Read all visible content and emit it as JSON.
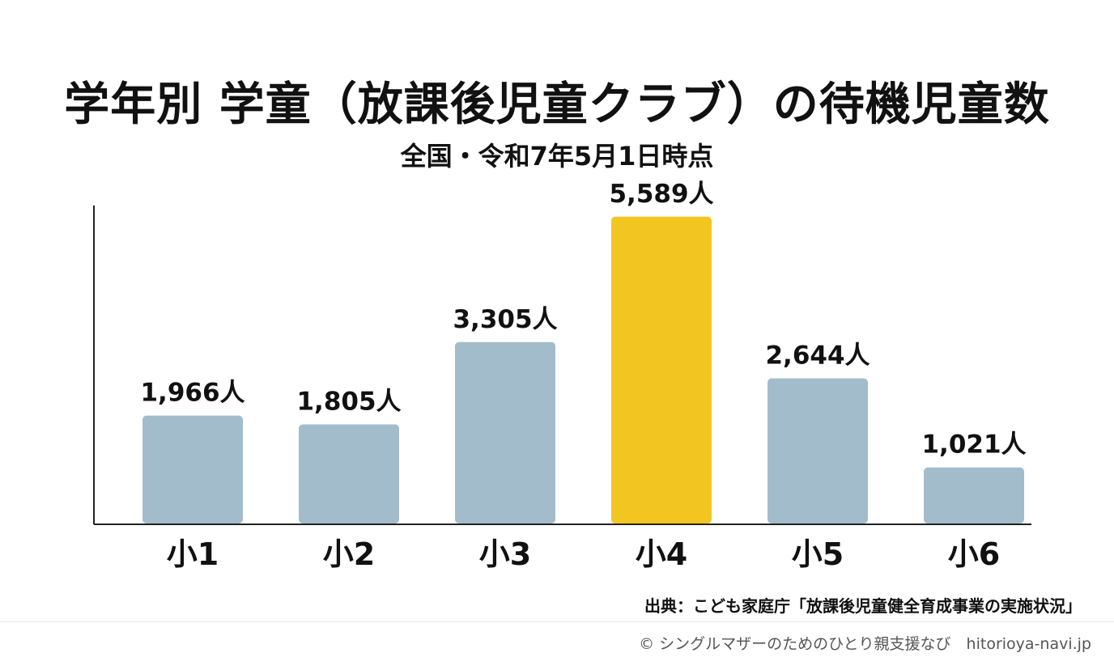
{
  "title": "学年別 学童（放課後児童クラブ）の待機児童数",
  "subtitle": "全国・令和7年5月1日時点",
  "chart_data": {
    "type": "bar",
    "categories": [
      "小1",
      "小2",
      "小3",
      "小4",
      "小5",
      "小6"
    ],
    "values": [
      1966,
      1805,
      3305,
      5589,
      2644,
      1021
    ],
    "value_labels": [
      "1,966人",
      "1,805人",
      "3,305人",
      "5,589人",
      "2,644人",
      "1,021人"
    ],
    "highlight_index": 3,
    "colors": {
      "default": "#a3bccc",
      "highlight": "#f2c521"
    },
    "ylim": [
      0,
      6500
    ],
    "grid": false
  },
  "source": "出典：こども家庭庁「放課後児童健全育成事業の実施状況」",
  "footer": "© シングルマザーのためのひとり親支援なび　hitorioya-navi.jp"
}
